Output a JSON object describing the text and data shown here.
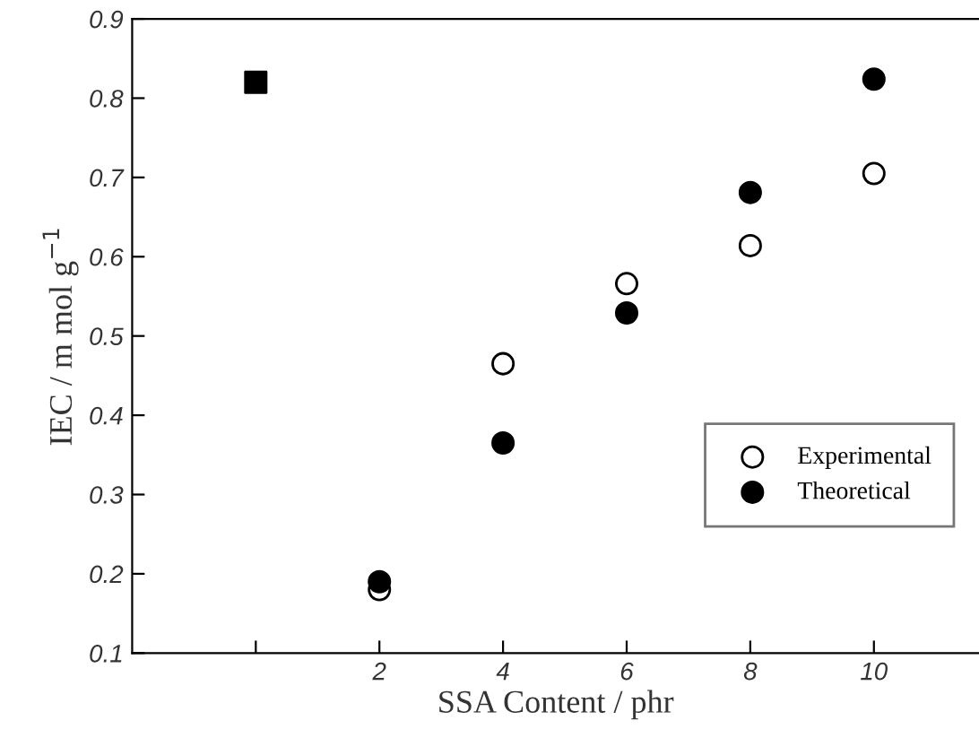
{
  "chart_data": {
    "type": "scatter",
    "xlabel": "SSA Content / phr",
    "ylabel": "IEC / m mol g$^{−1}$",
    "categories": [
      null,
      "2",
      "4",
      "6",
      "8",
      "10"
    ],
    "series": [
      {
        "color": "#000000",
        "marker": "square",
        "values": [
          0.82,
          null,
          null,
          null,
          null,
          null
        ]
      },
      {
        "name": "Experimental",
        "color": "#ffffff",
        "marker": "circle",
        "values": [
          null,
          0.18,
          0.465,
          0.566,
          0.614,
          0.705
        ]
      },
      {
        "name": "Theoretical",
        "color": "#000000",
        "marker": "circle",
        "values": [
          null,
          0.19,
          0.365,
          0.529,
          0.681,
          0.824
        ]
      }
    ],
    "ylim": [
      0.1,
      0.9
    ],
    "yticks": [
      0.1,
      0.2,
      0.3,
      0.4,
      0.5,
      0.6,
      0.7,
      0.8,
      0.9
    ],
    "grid": false,
    "legend": "bottom right"
  }
}
